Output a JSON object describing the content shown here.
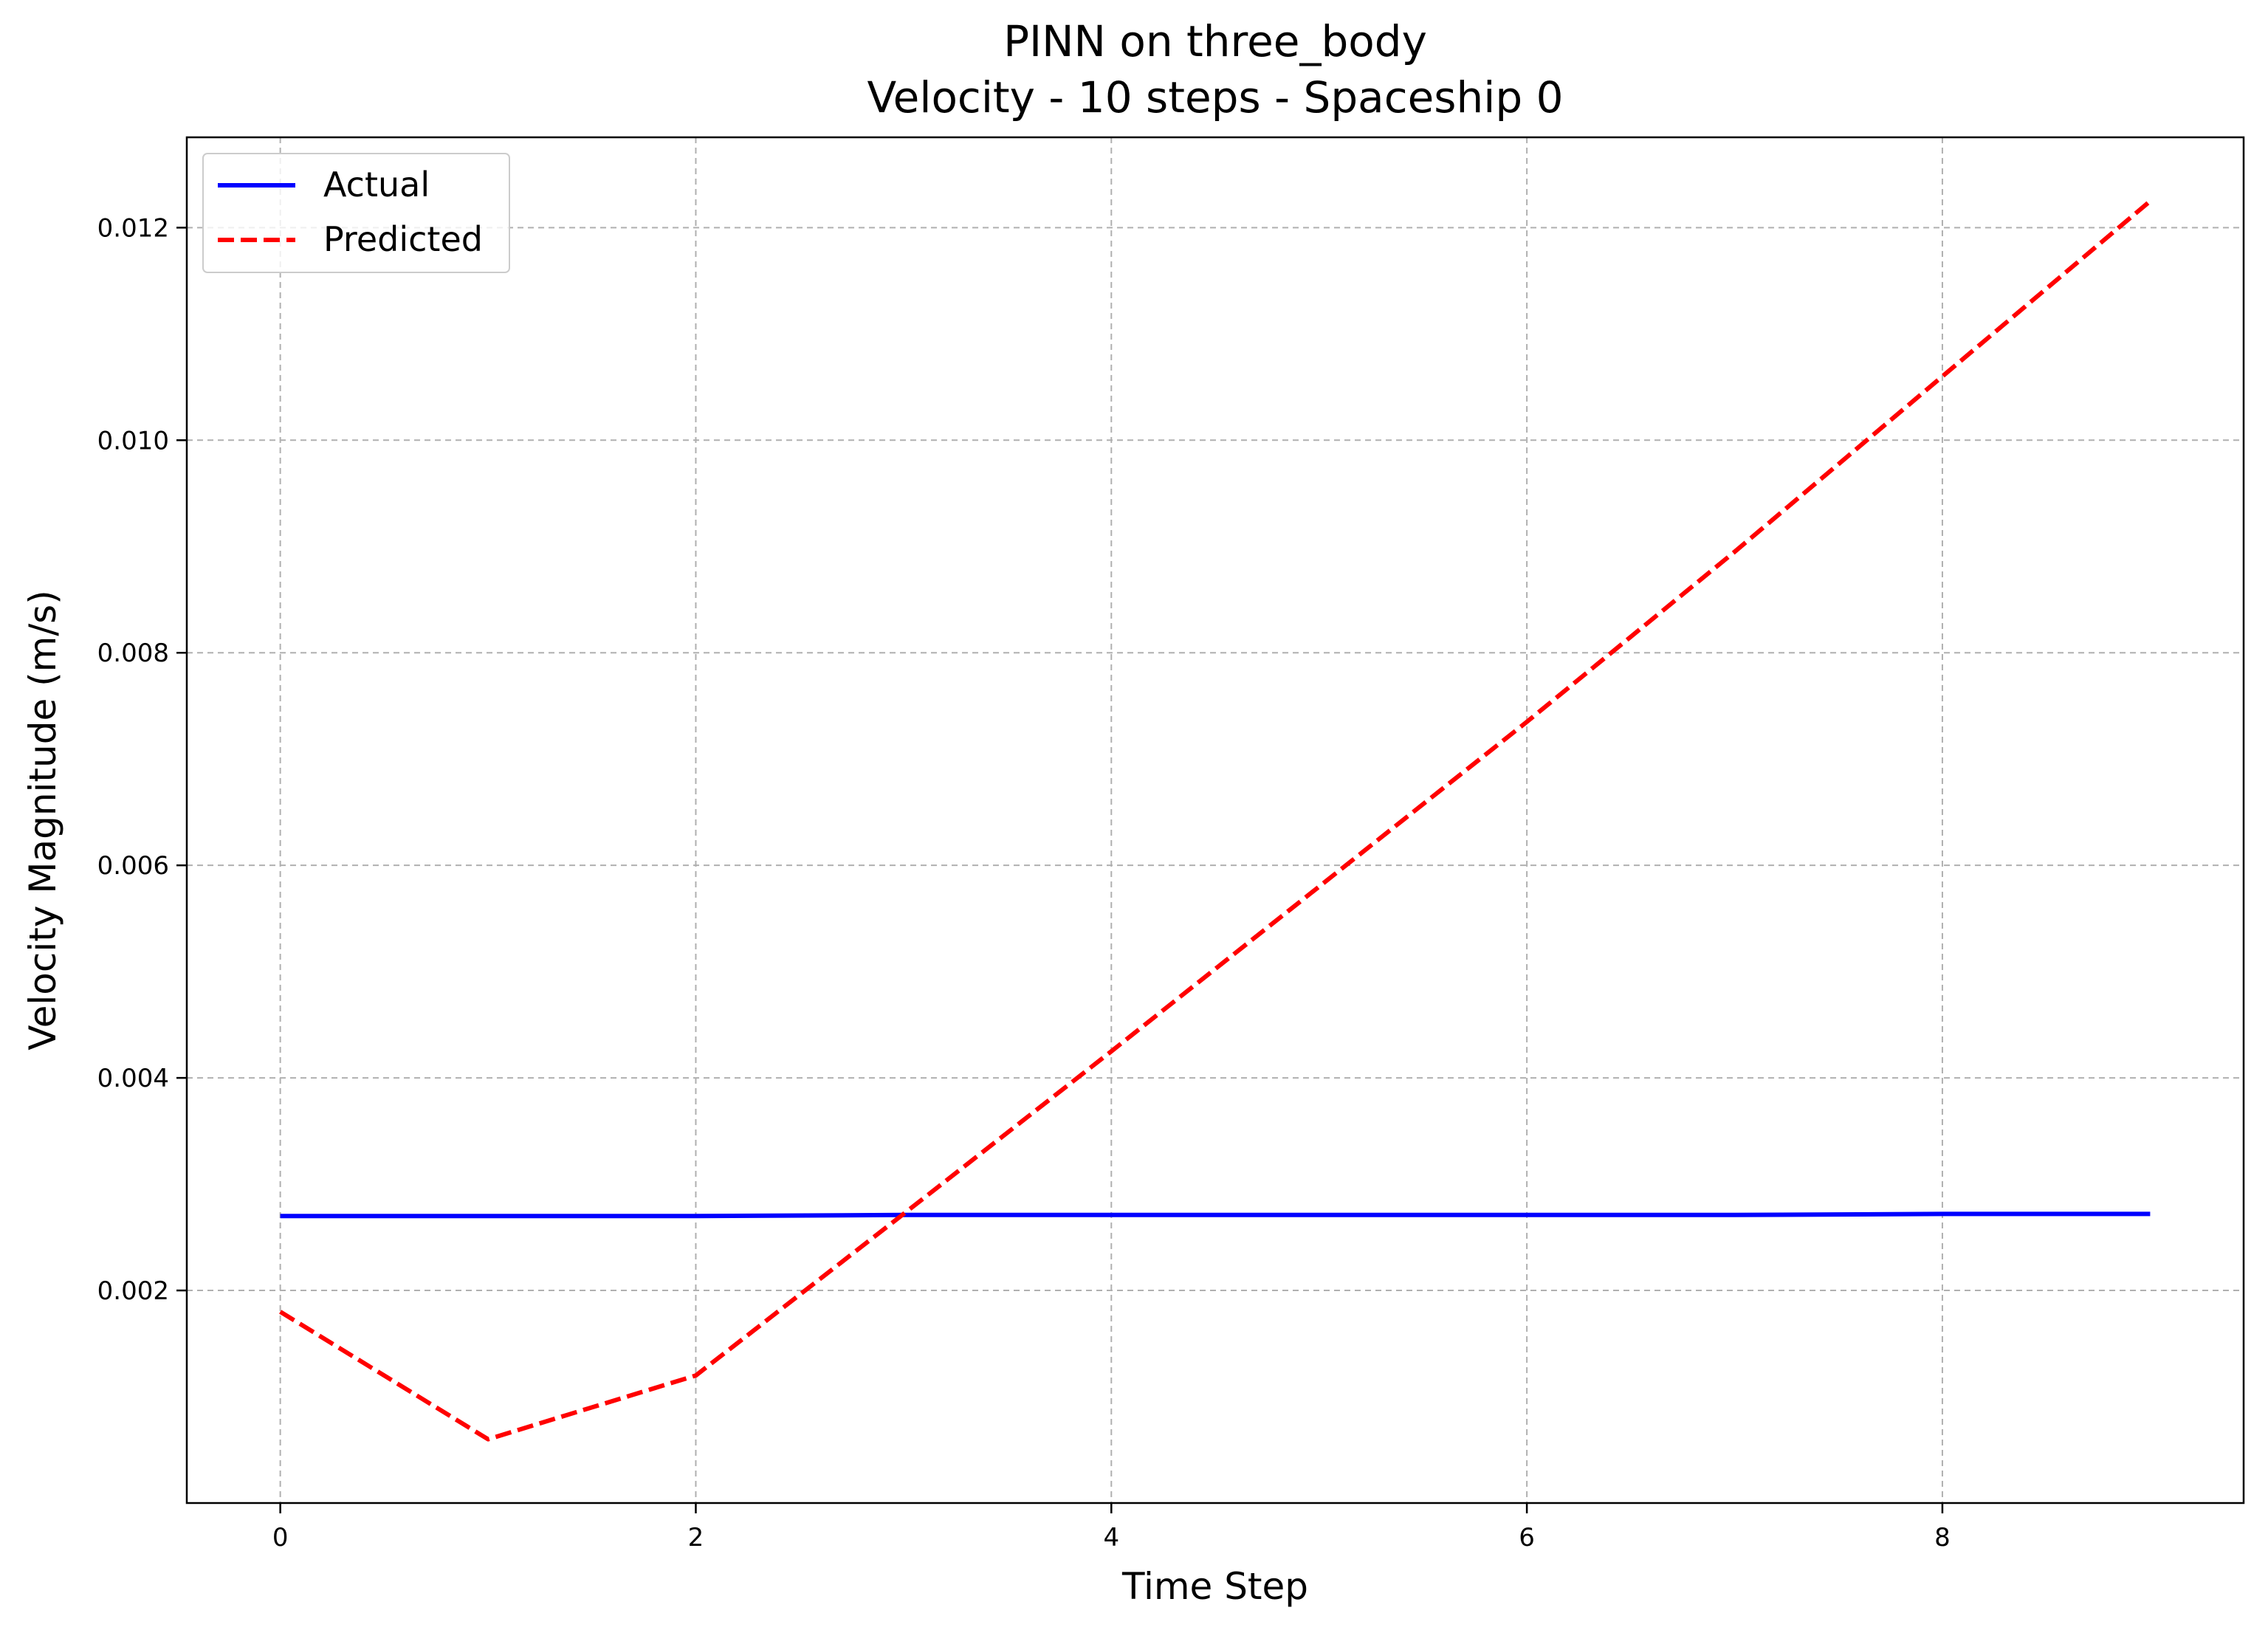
{
  "chart_data": {
    "type": "line",
    "title_lines": [
      "PINN on three_body",
      "Velocity - 10 steps - Spaceship 0"
    ],
    "xlabel": "Time Step",
    "ylabel": "Velocity Magnitude (m/s)",
    "xlim": [
      -0.45,
      9.45
    ],
    "ylim": [
      0.0,
      0.01285
    ],
    "xticks": [
      0,
      2,
      4,
      6,
      8
    ],
    "xtick_labels": [
      "0",
      "2",
      "4",
      "6",
      "8"
    ],
    "yticks": [
      0.002,
      0.004,
      0.006,
      0.008,
      0.01,
      0.012
    ],
    "ytick_labels": [
      "0.002",
      "0.004",
      "0.006",
      "0.008",
      "0.010",
      "0.012"
    ],
    "grid": true,
    "legend_position": "top-left",
    "series": [
      {
        "name": "Actual",
        "color": "#0000ff",
        "style": "solid",
        "x": [
          0,
          1,
          2,
          3,
          4,
          5,
          6,
          7,
          8,
          9
        ],
        "y": [
          0.0027,
          0.0027,
          0.0027,
          0.00271,
          0.00271,
          0.00271,
          0.00271,
          0.00271,
          0.00272,
          0.00272
        ]
      },
      {
        "name": "Predicted",
        "color": "#ff0000",
        "style": "dashed",
        "x": [
          0,
          1,
          2,
          3,
          4,
          5,
          6,
          7,
          8,
          9
        ],
        "y": [
          0.0018,
          0.0006,
          0.0012,
          0.00272,
          0.00425,
          0.0058,
          0.00735,
          0.00895,
          0.0106,
          0.01225
        ]
      }
    ]
  }
}
